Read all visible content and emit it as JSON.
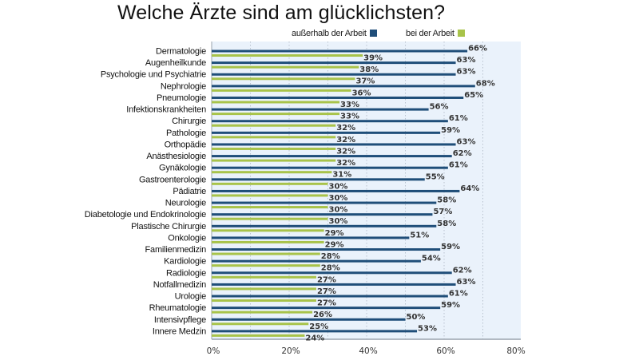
{
  "chart_data": {
    "type": "bar",
    "orientation": "horizontal",
    "title": "Welche Ärzte sind am glücklichsten?",
    "xlabel": "",
    "ylabel": "",
    "xlim": [
      0,
      80
    ],
    "x_ticks": [
      "0%",
      "20%",
      "40%",
      "60%",
      "80%"
    ],
    "x_tick_values": [
      0,
      20,
      40,
      60,
      80
    ],
    "grid": true,
    "legend_position": "top-right",
    "value_suffix": "%",
    "categories": [
      "Dermatologie",
      "Augenheilkunde",
      "Psychologie und Psychiatrie",
      "Nephrologie",
      "Pneumologie",
      "Infektionskrankheiten",
      "Chirurgie",
      "Pathologie",
      "Orthopädie",
      "Anästhesiologie",
      "Gynäkologie",
      "Gastroenterologie",
      "Pädiatrie",
      "Neurologie",
      "Diabetologie und Endokrinologie",
      "Plastische Chirurgie",
      "Onkologie",
      "Familienmedizin",
      "Kardiologie",
      "Radiologie",
      "Notfallmedizin",
      "Urologie",
      "Rheumatologie",
      "Intensivpflege",
      "Innere Medzin"
    ],
    "series": [
      {
        "name": "außerhalb der Arbeit",
        "color": "#1f4e79",
        "values": [
          66,
          63,
          63,
          68,
          65,
          56,
          61,
          59,
          63,
          62,
          61,
          55,
          64,
          58,
          57,
          58,
          51,
          59,
          54,
          62,
          63,
          61,
          59,
          50,
          53
        ]
      },
      {
        "name": "bei der Arbeit",
        "color": "#a8c34a",
        "values": [
          39,
          38,
          37,
          36,
          33,
          33,
          32,
          32,
          32,
          32,
          31,
          30,
          30,
          30,
          30,
          29,
          29,
          28,
          28,
          27,
          27,
          27,
          26,
          25,
          24
        ]
      }
    ]
  },
  "colors": {
    "plot_background": "#eaf2fb",
    "grid": "#b9c3cf",
    "axis": "#9aa3ad"
  }
}
